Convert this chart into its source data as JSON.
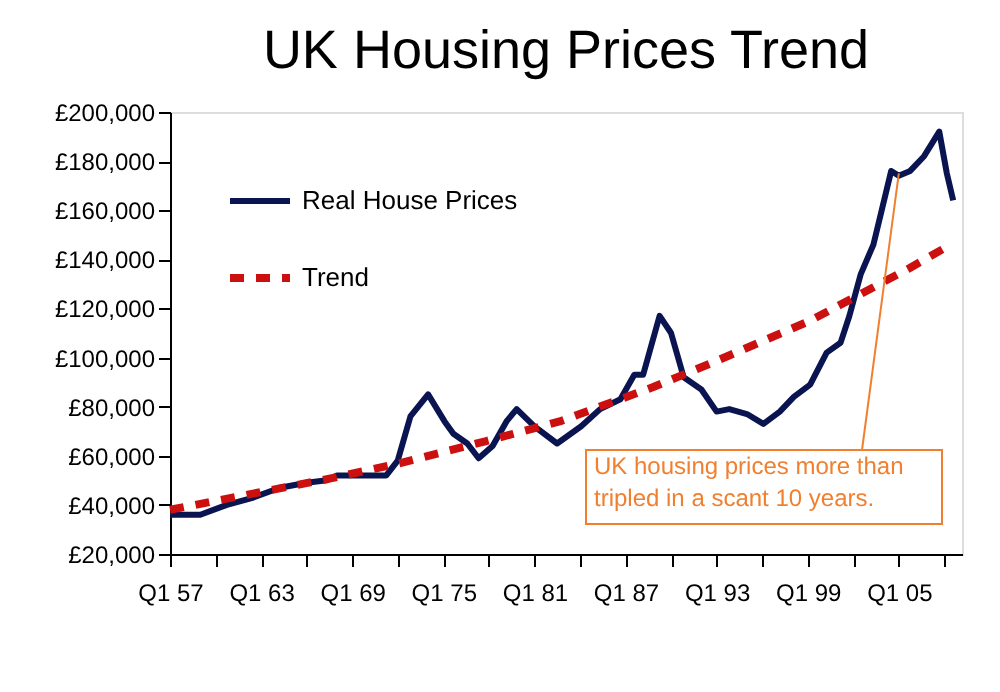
{
  "chart_data": {
    "type": "line",
    "title": "UK Housing Prices Trend",
    "xlim": [
      "1957-01",
      "2009-03"
    ],
    "xticks": [
      {
        "value": "1957-01",
        "label": "Q1 57"
      },
      {
        "value": "1960-01",
        "label": null
      },
      {
        "value": "1963-01",
        "label": "Q1 63"
      },
      {
        "value": "1966-01",
        "label": null
      },
      {
        "value": "1969-01",
        "label": "Q1 69"
      },
      {
        "value": "1972-01",
        "label": null
      },
      {
        "value": "1975-01",
        "label": "Q1 75"
      },
      {
        "value": "1978-01",
        "label": null
      },
      {
        "value": "1981-01",
        "label": "Q1 81"
      },
      {
        "value": "1984-01",
        "label": null
      },
      {
        "value": "1987-01",
        "label": "Q1 87"
      },
      {
        "value": "1990-01",
        "label": null
      },
      {
        "value": "1993-01",
        "label": "Q1 93"
      },
      {
        "value": "1996-01",
        "label": null
      },
      {
        "value": "1999-01",
        "label": "Q1 99"
      },
      {
        "value": "2002-01",
        "label": null
      },
      {
        "value": "2005-01",
        "label": "Q1 05"
      },
      {
        "value": "2008-01",
        "label": null
      }
    ],
    "ylim": [
      20000,
      200000
    ],
    "yticks": [
      {
        "value": 20000,
        "label": "£20,000"
      },
      {
        "value": 40000,
        "label": "£40,000"
      },
      {
        "value": 60000,
        "label": "£60,000"
      },
      {
        "value": 80000,
        "label": "£80,000"
      },
      {
        "value": 100000,
        "label": "£100,000"
      },
      {
        "value": 120000,
        "label": "£120,000"
      },
      {
        "value": 140000,
        "label": "£140,000"
      },
      {
        "value": 160000,
        "label": "£160,000"
      },
      {
        "value": 180000,
        "label": "£180,000"
      },
      {
        "value": 200000,
        "label": "£200,000"
      }
    ],
    "grid": false,
    "legend": "top left",
    "marker": "none",
    "series": [
      {
        "name": "Real House Prices",
        "color": "#0a1450",
        "line_style": "solid",
        "x": [
          "1957-01",
          "1959-01",
          "1960-10",
          "1962-07",
          "1964-04",
          "1966-01",
          "1967-05",
          "1968-01",
          "1971-04",
          "1972-01",
          "1972-11",
          "1974-01",
          "1975-02",
          "1975-09",
          "1976-08",
          "1977-05",
          "1978-04",
          "1979-03",
          "1979-11",
          "1981-01",
          "1982-07",
          "1984-02",
          "1985-05",
          "1986-09",
          "1987-08",
          "1988-03",
          "1989-04",
          "1990-01",
          "1990-11",
          "1992-01",
          "1993-01",
          "1993-11",
          "1995-01",
          "1996-02",
          "1997-03",
          "1998-02",
          "1999-03",
          "2000-04",
          "2001-03",
          "2001-10",
          "2002-07",
          "2003-05",
          "2004-07",
          "2005-01",
          "2005-10",
          "2006-09",
          "2007-09",
          "2008-03",
          "2008-08"
        ],
        "values": [
          36000,
          36000,
          40000,
          43000,
          47000,
          49000,
          50000,
          52000,
          52000,
          58000,
          76000,
          85000,
          74000,
          69000,
          65000,
          59000,
          64000,
          74000,
          79000,
          72000,
          65000,
          72000,
          79000,
          83000,
          93000,
          93000,
          117000,
          110000,
          92000,
          87000,
          78000,
          79000,
          77000,
          73000,
          78000,
          84000,
          89000,
          102000,
          106000,
          117000,
          134000,
          146000,
          176000,
          174000,
          176000,
          182000,
          192000,
          175000,
          164000
        ]
      },
      {
        "name": "Trend",
        "color": "#cc1010",
        "line_style": "dashed",
        "x": [
          "1957-01",
          "1967-10",
          "1972-03",
          "1977-11",
          "1982-09",
          "1988-11",
          "1992-10",
          "1999-03",
          "2005-08",
          "2008-06"
        ],
        "values": [
          38000,
          51000,
          57000,
          66000,
          74000,
          88000,
          98000,
          115000,
          136000,
          146000
        ]
      }
    ],
    "annotations": [
      {
        "text": "UK housing prices more than tripled in a scant 10 years.",
        "x": "2005-01",
        "y": 175000
      }
    ]
  }
}
